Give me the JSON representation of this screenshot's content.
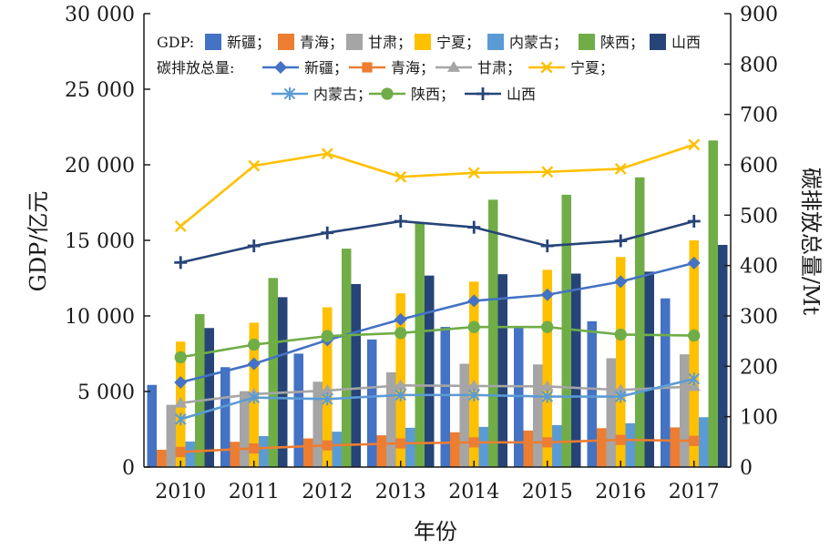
{
  "chart_data": {
    "type": "bar",
    "xlabel": "年份",
    "ylabel_left": "GDP/亿元",
    "ylabel_right": "碳排放总量/Mt",
    "categories": [
      "2010",
      "2011",
      "2012",
      "2013",
      "2014",
      "2015",
      "2016",
      "2017"
    ],
    "ylim_left": [
      0,
      30000
    ],
    "ylim_right": [
      0,
      900
    ],
    "yticks_left": [
      "0",
      "5 000",
      "10 000",
      "15 000",
      "20 000",
      "25 000",
      "30 000"
    ],
    "yticks_right": [
      "0",
      "100",
      "200",
      "300",
      "400",
      "500",
      "600",
      "700",
      "800",
      "900"
    ],
    "grid": false,
    "legend_position": "top",
    "legend_gdp_label": "GDP:",
    "legend_carbon_label": "碳排放总量:",
    "bar_series": [
      {
        "name": "新疆",
        "color": "#4472C4",
        "values": [
          5437,
          6610,
          7505,
          8443,
          9273,
          9325,
          9650,
          11160
        ]
      },
      {
        "name": "青海",
        "color": "#ED7D31",
        "values": [
          1144,
          1670,
          1894,
          2101,
          2303,
          2417,
          2572,
          2625
        ]
      },
      {
        "name": "甘肃",
        "color": "#A5A5A5",
        "values": [
          4120,
          5020,
          5650,
          6268,
          6836,
          6790,
          7200,
          7460
        ]
      },
      {
        "name": "宁夏",
        "color": "#FFC000",
        "values": [
          8300,
          9550,
          10570,
          11500,
          12270,
          13050,
          13900,
          15000
        ]
      },
      {
        "name": "内蒙古",
        "color": "#5B9BD5",
        "values": [
          1690,
          2050,
          2340,
          2600,
          2660,
          2780,
          2900,
          3300
        ]
      },
      {
        "name": "陕西",
        "color": "#70AD47",
        "values": [
          10120,
          12510,
          14450,
          16210,
          17690,
          18020,
          19170,
          21610
        ]
      },
      {
        "name": "山西",
        "color": "#264478",
        "values": [
          9200,
          11240,
          12110,
          12670,
          12760,
          12800,
          12930,
          14700
        ]
      }
    ],
    "line_series": [
      {
        "name": "新疆",
        "color": "#4472C4",
        "marker": "diamond",
        "values": [
          168,
          205,
          252,
          293,
          330,
          342,
          368,
          405
        ]
      },
      {
        "name": "青海",
        "color": "#ED7D31",
        "marker": "square",
        "values": [
          30,
          37,
          43,
          47,
          49,
          49,
          54,
          52
        ]
      },
      {
        "name": "甘肃",
        "color": "#A5A5A5",
        "marker": "triangle",
        "values": [
          127,
          145,
          152,
          162,
          161,
          160,
          153,
          160
        ]
      },
      {
        "name": "宁夏",
        "color": "#FFC000",
        "marker": "x",
        "values": [
          478,
          598,
          622,
          576,
          584,
          586,
          592,
          640
        ]
      },
      {
        "name": "内蒙古",
        "color": "#5B9BD5",
        "marker": "asterisk",
        "values": [
          95,
          138,
          135,
          143,
          143,
          140,
          140,
          175
        ]
      },
      {
        "name": "陕西",
        "color": "#70AD47",
        "marker": "circle",
        "values": [
          218,
          243,
          260,
          266,
          278,
          278,
          263,
          261
        ]
      },
      {
        "name": "山西",
        "color": "#264478",
        "marker": "plus",
        "values": [
          406,
          439,
          465,
          488,
          476,
          439,
          449,
          488
        ]
      }
    ]
  }
}
